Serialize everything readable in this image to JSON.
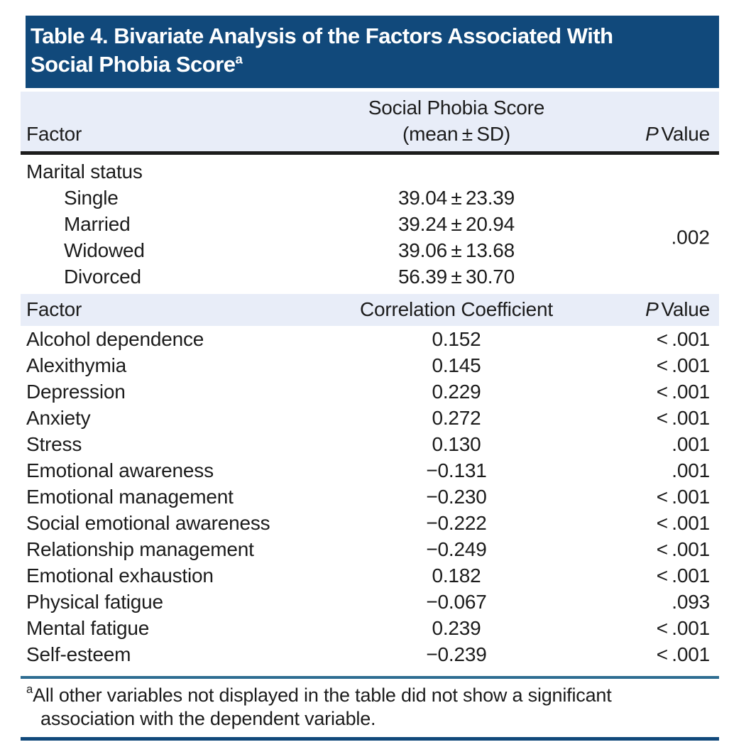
{
  "colors": {
    "header-bg": "#11497b",
    "band-bg": "#e8edf8",
    "rule-dark": "#1c1c1c",
    "rule-teal": "#2e6d92",
    "rule-navy": "#11497b",
    "title-color": "#ffffff",
    "text-color": "#1c1c1c"
  },
  "title": {
    "line1": "Table 4. Bivariate Analysis of the Factors Associated With",
    "line2": "Social Phobia Score",
    "superscript": "a"
  },
  "section1": {
    "header": {
      "factor": "Factor",
      "score_line1": "Social Phobia Score",
      "score_line2": "(mean ± SD)",
      "p_italic": "P",
      "p_word": "Value"
    },
    "group_label": "Marital status",
    "rows": [
      {
        "label": "Single",
        "value": "39.04 ± 23.39"
      },
      {
        "label": "Married",
        "value": "39.24 ± 20.94"
      },
      {
        "label": "Widowed",
        "value": "39.06 ± 13.68"
      },
      {
        "label": "Divorced",
        "value": "56.39 ± 30.70"
      }
    ],
    "p_value": ".002"
  },
  "section2": {
    "header": {
      "factor": "Factor",
      "coefficient": "Correlation Coefficient",
      "p_italic": "P",
      "p_word": "Value"
    },
    "rows": [
      {
        "label": "Alcohol dependence",
        "value": "0.152",
        "p": "< .001"
      },
      {
        "label": "Alexithymia",
        "value": "0.145",
        "p": "< .001"
      },
      {
        "label": "Depression",
        "value": "0.229",
        "p": "< .001"
      },
      {
        "label": "Anxiety",
        "value": "0.272",
        "p": "< .001"
      },
      {
        "label": "Stress",
        "value": "0.130",
        "p": ".001"
      },
      {
        "label": "Emotional awareness",
        "value": "−0.131",
        "p": ".001"
      },
      {
        "label": "Emotional management",
        "value": "−0.230",
        "p": "< .001"
      },
      {
        "label": "Social emotional awareness",
        "value": "−0.222",
        "p": "< .001"
      },
      {
        "label": "Relationship management",
        "value": "−0.249",
        "p": "< .001"
      },
      {
        "label": "Emotional exhaustion",
        "value": "0.182",
        "p": "< .001"
      },
      {
        "label": "Physical fatigue",
        "value": "−0.067",
        "p": ".093"
      },
      {
        "label": "Mental fatigue",
        "value": "0.239",
        "p": "< .001"
      },
      {
        "label": "Self-esteem",
        "value": "−0.239",
        "p": "< .001"
      }
    ]
  },
  "footnote": {
    "marker": "a",
    "text": "All other variables not displayed in the table did not show a significant association with the dependent variable."
  }
}
